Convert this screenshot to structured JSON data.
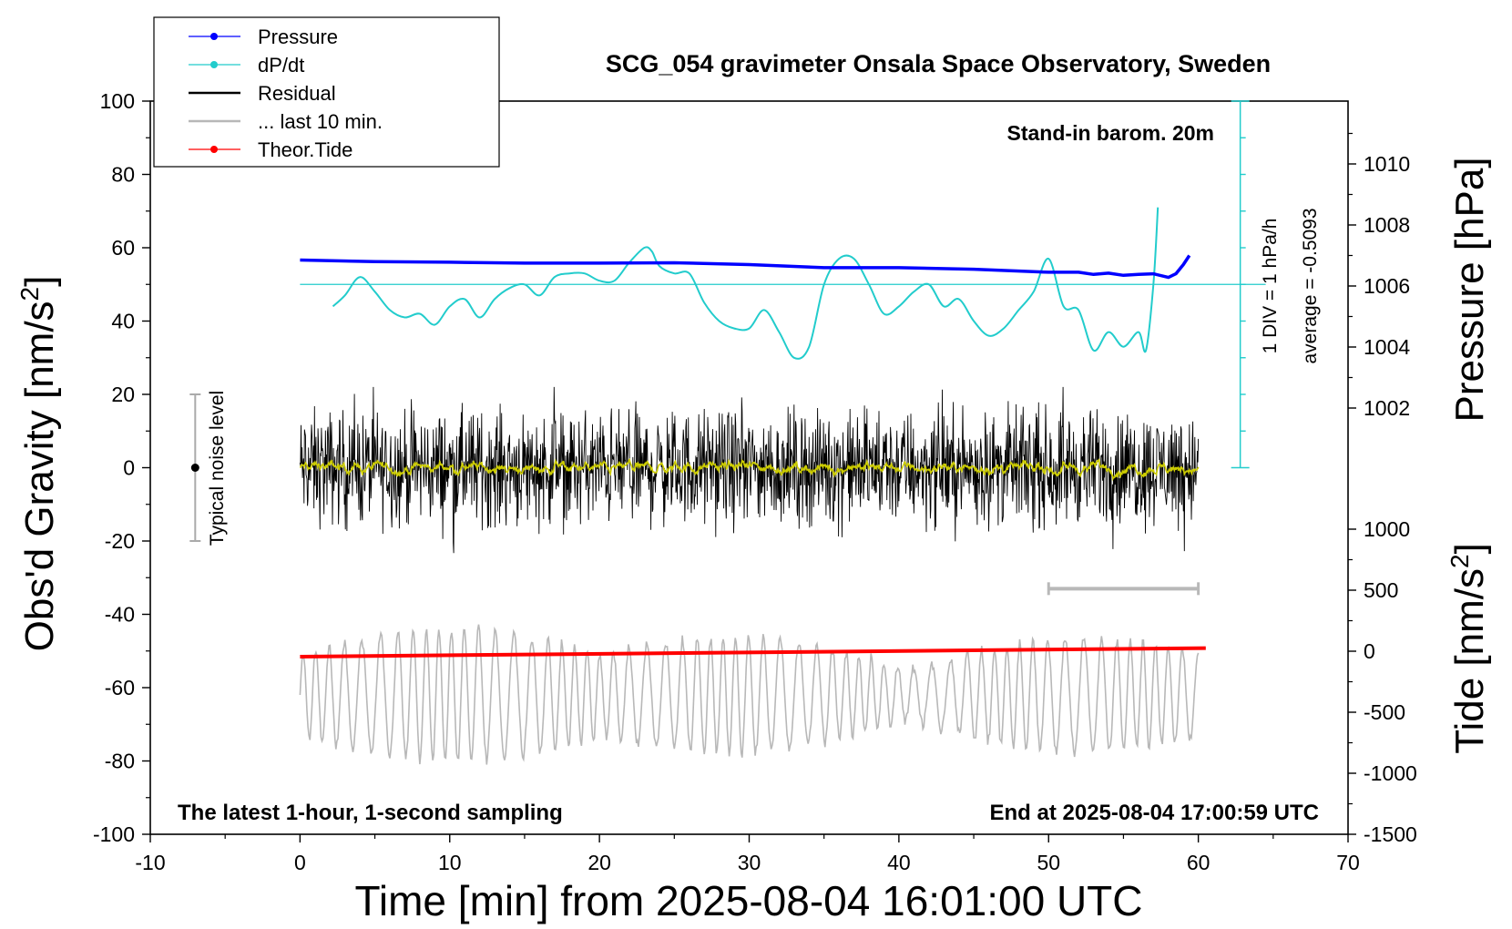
{
  "chart_data": {
    "type": "line",
    "title": "SCG_054 gravimeter Onsala Space Observatory, Sweden",
    "xlabel": "Time [min] from 2025-08-04 16:01:00 UTC",
    "ylabel_left": "Obs'd Gravity [nm/s",
    "ylabel_left_sup": "2",
    "ylabel_left_end": "]",
    "ylabel_right_pressure": "Pressure [hPa]",
    "ylabel_right_tide": "Tide [nm/s",
    "ylabel_right_tide_sup": "2",
    "ylabel_right_tide_end": "]",
    "xlim": [
      -10,
      70
    ],
    "ylim": [
      -100,
      100
    ],
    "x_ticks": [
      "-10",
      "0",
      "10",
      "20",
      "30",
      "40",
      "50",
      "60",
      "70"
    ],
    "y_ticks_left": [
      "-100",
      "-80",
      "-60",
      "-40",
      "-20",
      "0",
      "20",
      "40",
      "60",
      "80",
      "100"
    ],
    "pressure_ticks": [
      "1002",
      "1004",
      "1006",
      "1008",
      "1010"
    ],
    "tide_ticks": [
      "-1500",
      "-1000",
      "-500",
      "0",
      "500",
      "1000"
    ],
    "pressure_ylim": [
      1002,
      1010
    ],
    "tide_ylim": [
      -1500,
      1000
    ],
    "annotations": {
      "barometer": "Stand-in barom. 20m",
      "div": "1 DIV = 1 hPa/h",
      "average": "average = -0.5093",
      "noise": "Typical noise level",
      "sampling": "The latest 1-hour, 1-second sampling",
      "end_time": "End at 2025-08-04 17:00:59 UTC"
    },
    "legend_position": "top-left",
    "legend": [
      "Pressure",
      "dP/dt",
      "Residual",
      "... last 10 min.",
      "Theor.Tide"
    ],
    "series": [
      {
        "name": "Pressure",
        "color": "#0000ff",
        "axis": "pressure",
        "x": [
          0,
          5,
          10,
          15,
          20,
          25,
          30,
          35,
          40,
          45,
          50,
          52,
          53,
          54,
          55,
          56,
          57,
          58,
          58.5,
          59,
          59.4
        ],
        "values": [
          1006.85,
          1006.8,
          1006.78,
          1006.75,
          1006.75,
          1006.76,
          1006.7,
          1006.6,
          1006.6,
          1006.55,
          1006.45,
          1006.45,
          1006.38,
          1006.42,
          1006.35,
          1006.38,
          1006.4,
          1006.28,
          1006.4,
          1006.7,
          1007.0
        ]
      },
      {
        "name": "dP/dt",
        "color": "#22cccc",
        "axis": "left",
        "x": [
          2.2,
          3,
          4,
          5,
          6,
          7,
          8,
          9,
          10,
          11,
          12,
          13,
          14,
          15,
          16,
          17,
          18,
          19,
          20,
          21,
          22,
          23,
          23.5,
          24,
          25,
          26,
          27,
          28,
          29,
          30,
          31,
          32,
          33,
          34,
          35,
          36,
          37,
          38,
          39,
          40,
          41,
          42,
          43,
          44,
          45,
          46,
          47,
          48,
          49,
          50,
          51,
          52,
          53,
          54,
          55,
          56,
          56.5,
          57,
          57.3
        ],
        "values": [
          44,
          47,
          52,
          48,
          43,
          41,
          42,
          39,
          44,
          46,
          41,
          46,
          49,
          50,
          47,
          52,
          53,
          53,
          51,
          51,
          56,
          60,
          59,
          55,
          53,
          53,
          45,
          40,
          38,
          38,
          43,
          37,
          30,
          33,
          50,
          57,
          57,
          50,
          42,
          44,
          48,
          50,
          44,
          46,
          40,
          36,
          38,
          43,
          48,
          57,
          44,
          43,
          32,
          37,
          33,
          37,
          32,
          50,
          71
        ]
      },
      {
        "name": "Residual",
        "color": "#000000",
        "axis": "left",
        "x_range": [
          0,
          60
        ],
        "amplitude": [
          -24,
          22
        ],
        "center": 0
      },
      {
        "name": "... last 10 min.",
        "color": "#b8b8b8",
        "axis": "left",
        "x_range": [
          0,
          60
        ],
        "amplitude": [
          -83,
          -41
        ],
        "center": -62
      },
      {
        "name": "Theor.Tide",
        "color": "#ff0000",
        "axis": "tide",
        "x": [
          0,
          60.5
        ],
        "values": [
          -45,
          25
        ]
      }
    ],
    "residual_mean_color": "#cccc00",
    "noise_bar": {
      "x": -7,
      "low": -20,
      "high": 20
    },
    "last10_bar": {
      "x": [
        50,
        60
      ],
      "y": -33
    },
    "dpdt_reference": {
      "value": 50,
      "label_average": "-0.5093"
    }
  }
}
